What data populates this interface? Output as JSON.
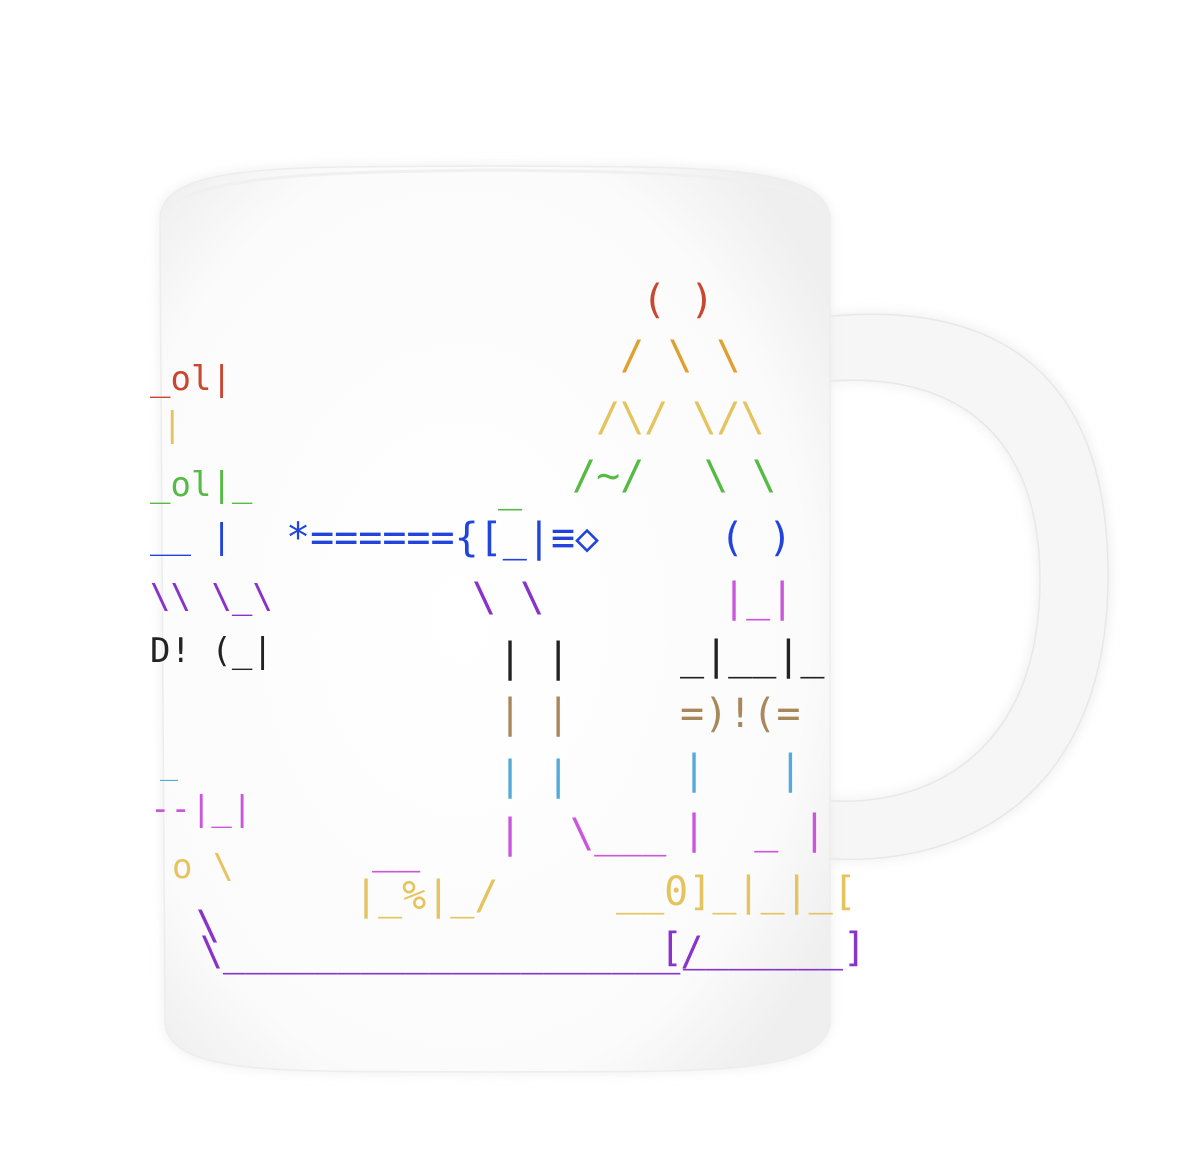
{
  "mug": {
    "body_color": "#fafafa",
    "rim_color": "#f2f2f2",
    "shadow_color": "#e6e6e6"
  },
  "palette": {
    "red": "#c8472e",
    "orange": "#e0a030",
    "yellow": "#e5c460",
    "green": "#55bb44",
    "blue": "#2244dd",
    "violet": "#8833cc",
    "magenta": "#cc55dd",
    "black": "#222222",
    "brown": "#a8875a",
    "cyan": "#55aadd"
  },
  "art": {
    "left_edge": [
      {
        "text": "_ol|",
        "color": "red"
      },
      {
        "text": "|",
        "color": "yellow"
      },
      {
        "text": "_ol|_",
        "color": "green"
      },
      {
        "text": "__ |",
        "color": "blue"
      },
      {
        "text": "\\\\ \\_\\",
        "color": "violet"
      },
      {
        "text": "D! (_|",
        "color": "black"
      },
      {
        "text": "_",
        "color": "cyan"
      },
      {
        "text": "--|_|",
        "color": "magenta"
      },
      {
        "text": "o \\",
        "color": "yellow"
      },
      {
        "text": "\\",
        "color": "violet"
      }
    ],
    "head": "( )",
    "arm_1": "/ \\ \\",
    "arm_2": "/\\/ \\/\\",
    "arm_3": "/~/",
    "arm_3_right": "\\ \\",
    "hat": "_",
    "weapon": "*======{[_|≡◇",
    "right_head": "( )",
    "legs_1": "\\ \\",
    "right_neck": "|_|",
    "legs_2": "| |",
    "right_bar": "_|__|_",
    "legs_3": "| |",
    "right_gear": "=)!(=",
    "legs_4": "| |",
    "right_legs_1": "|   |",
    "left_leg": "|",
    "right_foot": "\\___",
    "right_legs_2": "|  _ |",
    "pot_top": "__",
    "pot": "|_%|_/",
    "machine": "__0]_|_|_[",
    "baseline": "\\____________________/",
    "tray": "[_______]"
  }
}
